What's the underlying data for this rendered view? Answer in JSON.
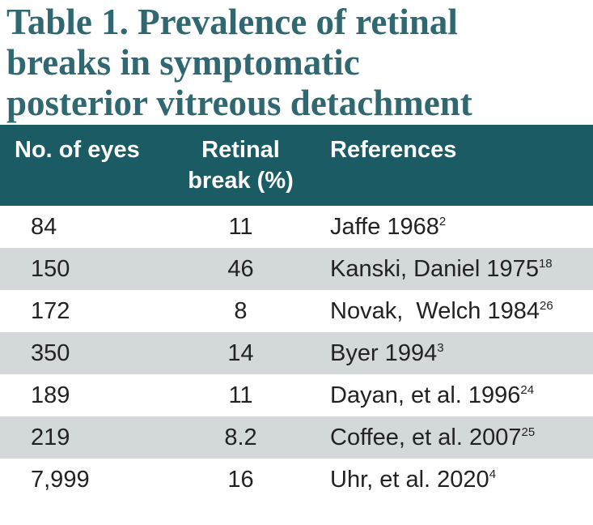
{
  "title_lines": [
    "Table 1. Prevalence of retinal",
    "breaks in symptomatic",
    "posterior vitreous detachment"
  ],
  "table": {
    "headers": [
      "No. of eyes",
      "Retinal break (%)",
      "References"
    ],
    "rows": [
      [
        "84",
        "11",
        {
          "text": "Jaffe 1968",
          "sup": "2"
        }
      ],
      [
        "150",
        "46",
        {
          "text": "Kanski, Daniel 1975",
          "sup": "18"
        }
      ],
      [
        "172",
        "8",
        {
          "text": "Novak,  Welch 1984",
          "sup": "26"
        }
      ],
      [
        "350",
        "14",
        {
          "text": "Byer 1994",
          "sup": "3"
        }
      ],
      [
        "189",
        "11",
        {
          "text": "Dayan, et al. 1996",
          "sup": "24"
        }
      ],
      [
        "219",
        "8.2",
        {
          "text": "Coffee, et al. 2007",
          "sup": "25"
        }
      ],
      [
        "7,999",
        "16",
        {
          "text": "Uhr, et al. 2020",
          "sup": "4"
        }
      ]
    ]
  }
}
